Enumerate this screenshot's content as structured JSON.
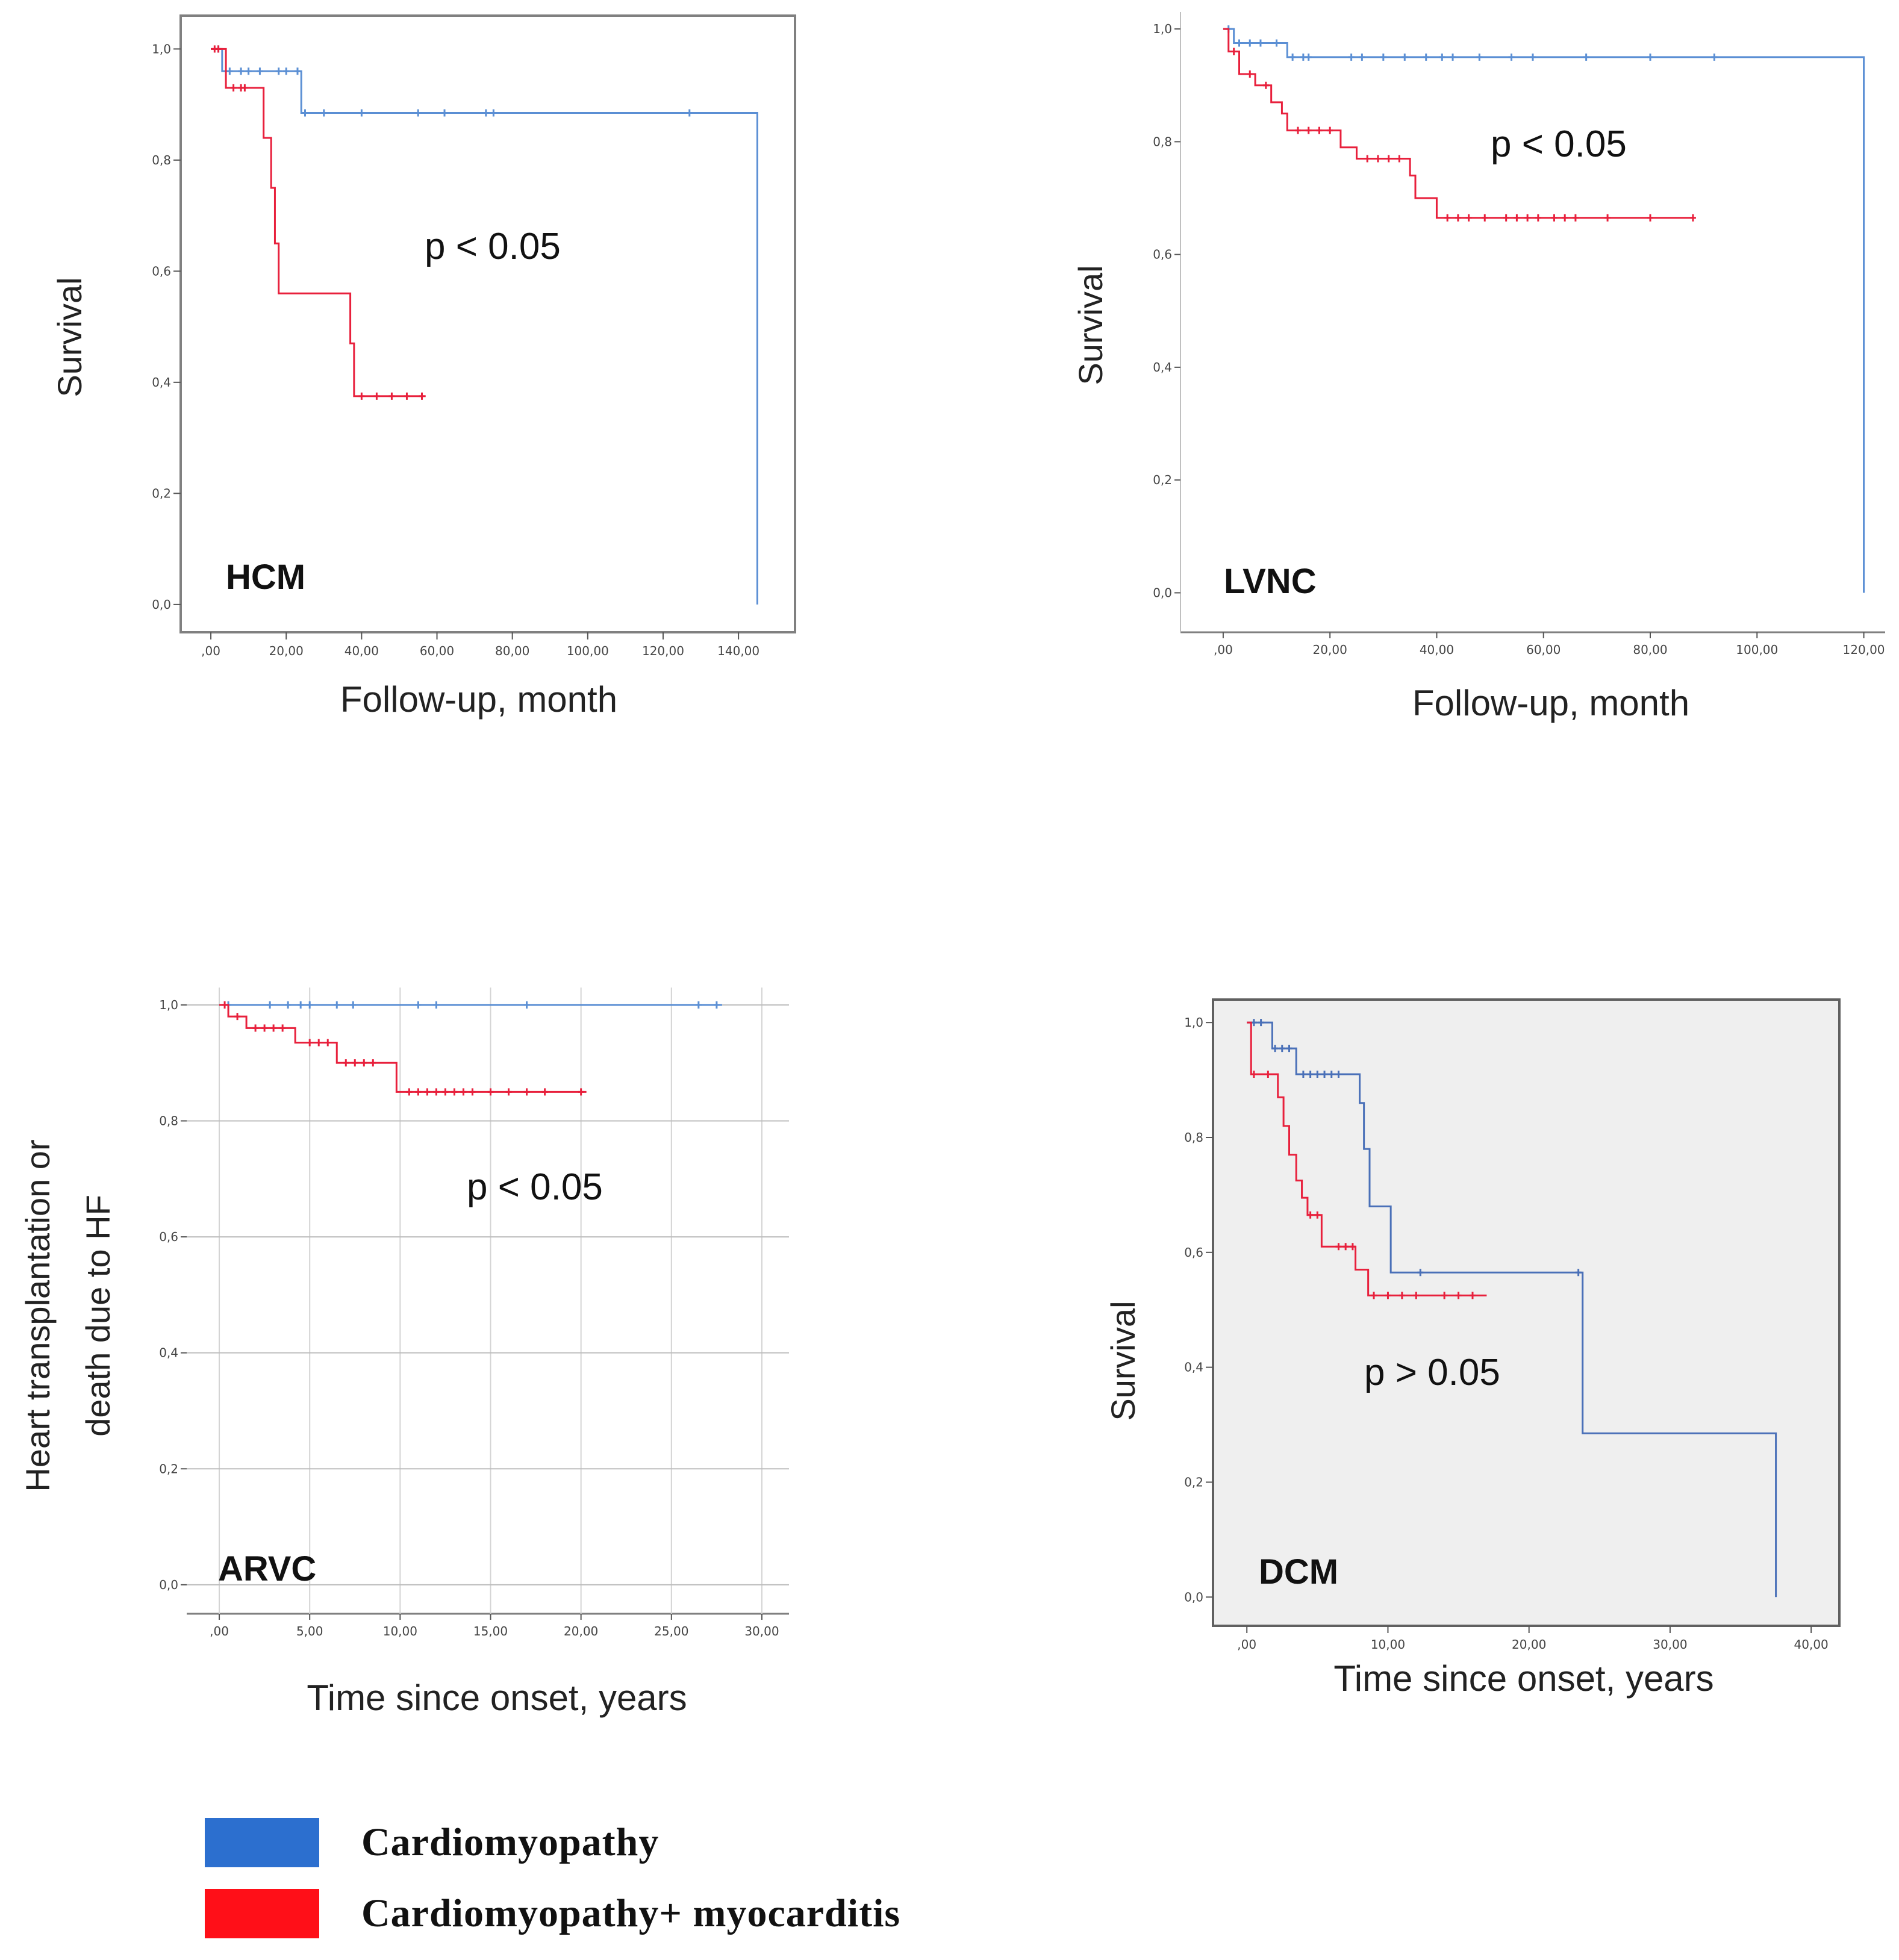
{
  "colors": {
    "cardiomyopathy": "#5b8fd4",
    "myocarditis": "#e8203c",
    "dcm_blue": "#4a70b8"
  },
  "legend": [
    {
      "label": "Cardiomyopathy",
      "color": "#2c6fcf"
    },
    {
      "label": "Cardiomyopathy+ myocarditis",
      "color": "#ff0f18"
    }
  ],
  "chart_data": [
    {
      "type": "line",
      "step": true,
      "panel_label": "HCM",
      "p_value": "p < 0.05",
      "ylabel": "Survival",
      "xlabel": "Follow-up, month",
      "xlim": [
        -8,
        155
      ],
      "ylim": [
        -0.05,
        1.06
      ],
      "xticks": [
        0,
        20,
        40,
        60,
        80,
        100,
        120,
        140
      ],
      "xtick_labels": [
        ",00",
        "20,00",
        "40,00",
        "60,00",
        "80,00",
        "100,00",
        "120,00",
        "140,00"
      ],
      "yticks": [
        0,
        0.2,
        0.4,
        0.6,
        0.8,
        1.0
      ],
      "ytick_labels": [
        "0,0",
        "0,2",
        "0,4",
        "0,6",
        "0,8",
        "1,0"
      ],
      "grid": false,
      "shaded": false,
      "series": [
        {
          "name": "Cardiomyopathy",
          "x": [
            0,
            3,
            24,
            145,
            145
          ],
          "y": [
            1.0,
            0.96,
            0.885,
            0.885,
            0.0
          ],
          "censored_x": [
            2,
            5,
            8,
            10,
            13,
            18,
            20,
            23,
            25,
            30,
            40,
            55,
            62,
            73,
            75,
            127
          ]
        },
        {
          "name": "Cardiomyopathy+ myocarditis",
          "x": [
            0,
            4,
            14,
            16,
            17,
            18,
            37,
            38,
            57
          ],
          "y": [
            1.0,
            0.93,
            0.84,
            0.75,
            0.65,
            0.56,
            0.47,
            0.375,
            0.375
          ],
          "censored_x": [
            1,
            2,
            6,
            8,
            9,
            40,
            44,
            48,
            52,
            56
          ]
        }
      ]
    },
    {
      "type": "line",
      "step": true,
      "panel_label": "LVNC",
      "p_value": "p < 0.05",
      "ylabel": "Survival",
      "xlabel": "Follow-up, month",
      "xlim": [
        -8,
        124
      ],
      "ylim": [
        -0.07,
        1.03
      ],
      "xticks": [
        0,
        20,
        40,
        60,
        80,
        100,
        120
      ],
      "xtick_labels": [
        ",00",
        "20,00",
        "40,00",
        "60,00",
        "80,00",
        "100,00",
        "120,00"
      ],
      "yticks": [
        0,
        0.2,
        0.4,
        0.6,
        0.8,
        1.0
      ],
      "ytick_labels": [
        "0,0",
        "0,2",
        "0,4",
        "0,6",
        "0,8",
        "1,0"
      ],
      "grid": false,
      "shaded": false,
      "series": [
        {
          "name": "Cardiomyopathy",
          "x": [
            0,
            2,
            12,
            120,
            120
          ],
          "y": [
            1.0,
            0.975,
            0.95,
            0.95,
            0.0
          ],
          "censored_x": [
            1,
            3,
            5,
            7,
            10,
            13,
            15,
            16,
            24,
            26,
            30,
            34,
            38,
            41,
            43,
            48,
            54,
            58,
            68,
            80,
            92
          ]
        },
        {
          "name": "Cardiomyopathy+ myocarditis",
          "x": [
            0,
            1,
            3,
            6,
            9,
            11,
            12,
            22,
            25,
            35,
            36,
            40,
            88
          ],
          "y": [
            1.0,
            0.96,
            0.92,
            0.9,
            0.87,
            0.85,
            0.82,
            0.79,
            0.77,
            0.74,
            0.7,
            0.665,
            0.665
          ],
          "censored_x": [
            2,
            5,
            8,
            14,
            16,
            18,
            20,
            27,
            29,
            31,
            33,
            42,
            44,
            46,
            49,
            53,
            55,
            57,
            59,
            62,
            64,
            66,
            72,
            80,
            88
          ]
        }
      ]
    },
    {
      "type": "line",
      "step": true,
      "panel_label": "ARVC",
      "p_value": "p < 0.05",
      "ylabel": "Heart transplantation or|death due to HF",
      "xlabel": "Time since onset, years",
      "xlim": [
        -1.8,
        31.5
      ],
      "ylim": [
        -0.05,
        1.03
      ],
      "xticks": [
        0,
        5,
        10,
        15,
        20,
        25,
        30
      ],
      "xtick_labels": [
        ",00",
        "5,00",
        "10,00",
        "15,00",
        "20,00",
        "25,00",
        "30,00"
      ],
      "yticks": [
        0,
        0.2,
        0.4,
        0.6,
        0.8,
        1.0
      ],
      "ytick_labels": [
        "0,0",
        "0,2",
        "0,4",
        "0,6",
        "0,8",
        "1,0"
      ],
      "grid": true,
      "shaded": false,
      "series": [
        {
          "name": "Cardiomyopathy",
          "x": [
            0,
            27.8
          ],
          "y": [
            1.0,
            1.0
          ],
          "censored_x": [
            0.5,
            2.8,
            3.8,
            4.5,
            5.0,
            6.5,
            7.4,
            11,
            12,
            17,
            26.5,
            27.5
          ]
        },
        {
          "name": "Cardiomyopathy+ myocarditis",
          "x": [
            0,
            0.5,
            1.5,
            4.2,
            6.5,
            9.8,
            20.3
          ],
          "y": [
            1.0,
            0.98,
            0.96,
            0.935,
            0.9,
            0.85,
            0.85
          ],
          "censored_x": [
            0.3,
            1.0,
            2.0,
            2.5,
            3.0,
            3.5,
            5.0,
            5.5,
            6.0,
            7.0,
            7.5,
            8.0,
            8.5,
            10.5,
            11,
            11.5,
            12,
            12.5,
            13,
            13.5,
            14,
            15,
            16,
            17,
            18,
            20
          ]
        }
      ]
    },
    {
      "type": "line",
      "step": true,
      "panel_label": "DCM",
      "p_value": "p > 0.05",
      "ylabel": "Survival",
      "xlabel": "Time since onset, years",
      "xlim": [
        -2.4,
        42
      ],
      "ylim": [
        -0.05,
        1.04
      ],
      "xticks": [
        0,
        10,
        20,
        30,
        40
      ],
      "xtick_labels": [
        ",00",
        "10,00",
        "20,00",
        "30,00",
        "40,00"
      ],
      "yticks": [
        0,
        0.2,
        0.4,
        0.6,
        0.8,
        1.0
      ],
      "ytick_labels": [
        "0,0",
        "0,2",
        "0,4",
        "0,6",
        "0,8",
        "1,0"
      ],
      "grid": false,
      "shaded": true,
      "series": [
        {
          "name": "Cardiomyopathy",
          "x": [
            0,
            1.8,
            3.5,
            8.0,
            8.3,
            8.7,
            10.2,
            23.8,
            37.5,
            37.5
          ],
          "y": [
            1.0,
            0.955,
            0.91,
            0.86,
            0.78,
            0.68,
            0.565,
            0.285,
            0.285,
            0.0
          ],
          "censored_x": [
            0.5,
            1.0,
            2.0,
            2.5,
            3.0,
            4.0,
            4.5,
            5.0,
            5.5,
            6.0,
            6.5,
            12.3,
            23.5
          ]
        },
        {
          "name": "Cardiomyopathy+ myocarditis",
          "x": [
            0,
            0.3,
            2.2,
            2.6,
            3.0,
            3.5,
            3.9,
            4.3,
            5.3,
            7.7,
            8.6,
            17
          ],
          "y": [
            1.0,
            0.91,
            0.87,
            0.82,
            0.77,
            0.725,
            0.695,
            0.665,
            0.61,
            0.57,
            0.525,
            0.525
          ],
          "censored_x": [
            0.5,
            1.5,
            4.5,
            5.0,
            6.5,
            7.0,
            7.5,
            9.0,
            10.0,
            11.0,
            12.0,
            14.0,
            15.0,
            16.0
          ]
        }
      ]
    }
  ]
}
